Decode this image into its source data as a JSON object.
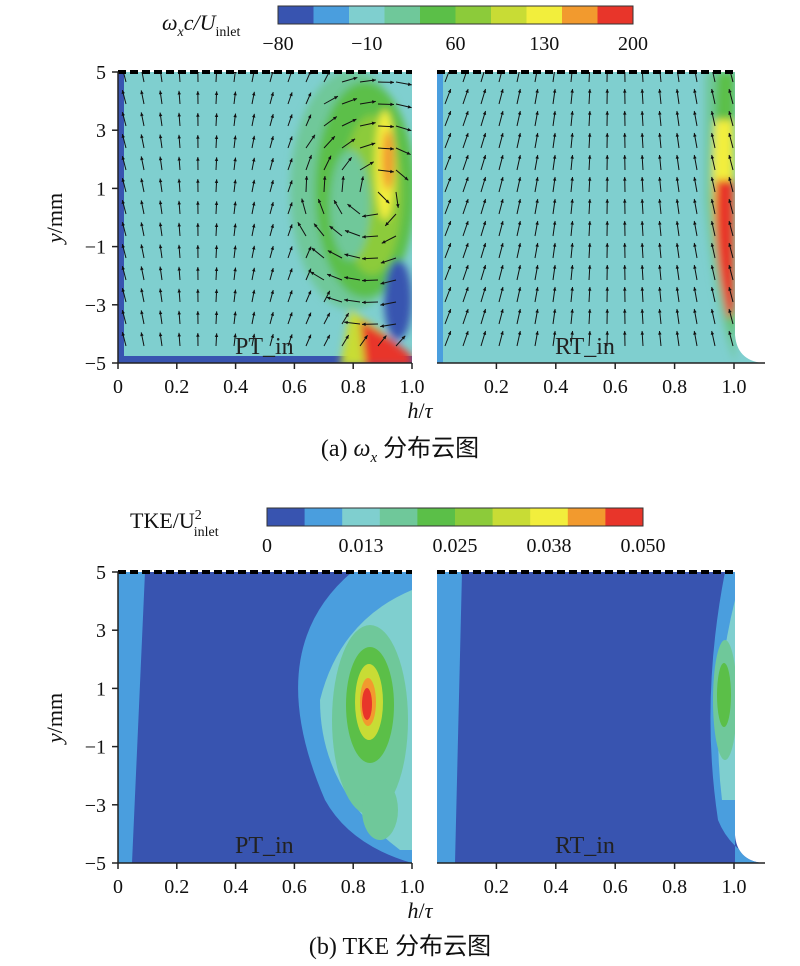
{
  "colors": {
    "levels": [
      "#3854b0",
      "#4a9ede",
      "#7fcfcf",
      "#6fc89a",
      "#5bbf48",
      "#8ccb3a",
      "#c8dc35",
      "#f2ee3c",
      "#f29a2e",
      "#e8352a"
    ],
    "wall": "#1f3fa8",
    "arrow": "#111111"
  },
  "chart_data": [
    {
      "type": "heatmap",
      "panel": "a",
      "caption_prefix": "(a) ",
      "caption_symbol": "ω",
      "caption_sub": "x",
      "caption_suffix": " 分布云图",
      "colorbar_label_main": "ω",
      "colorbar_label_sub1": "x",
      "colorbar_label_mid": "c/U",
      "colorbar_label_sub2": "inlet",
      "colorbar_ticks": [
        "−80",
        "−10",
        "60",
        "130",
        "200"
      ],
      "colorbar_range": [
        -80,
        200
      ],
      "ylabel_italic": "y",
      "ylabel_rest": "/mm",
      "yticks": [
        "5",
        "3",
        "1",
        "−1",
        "−3",
        "−5"
      ],
      "ylim": [
        -5,
        5
      ],
      "xlabel_italic_1": "h",
      "xlabel_sep": "/",
      "xlabel_italic_2": "τ",
      "subplots": [
        {
          "name": "PT_in",
          "xticks": [
            "0",
            "0.2",
            "0.4",
            "0.6",
            "0.8",
            "1.0"
          ],
          "xlim": [
            0,
            1.0
          ],
          "features": [
            {
              "kind": "vortex_ring",
              "center": [
                0.85,
                0.5
              ],
              "value_peak": 160,
              "value_ring": 70
            },
            {
              "kind": "corner_peak",
              "center": [
                0.95,
                -4.5
              ],
              "value_peak": 200
            },
            {
              "kind": "negative_region",
              "center": [
                0.97,
                -2.5
              ],
              "value_peak": -80
            }
          ]
        },
        {
          "name": "RT_in",
          "xticks": [
            "0.2",
            "0.4",
            "0.6",
            "0.8",
            "1.0"
          ],
          "xlim": [
            0,
            1.1
          ],
          "features": [
            {
              "kind": "wall_strip",
              "center": [
                0.95,
                0.0
              ],
              "value_peak": 200,
              "value_ring": 70
            }
          ]
        }
      ]
    },
    {
      "type": "heatmap",
      "panel": "b",
      "caption_prefix": "(b) ",
      "caption_text": "TKE 分布云图",
      "colorbar_label_main": "TKE/U",
      "colorbar_label_sup": "2",
      "colorbar_label_sub": "inlet",
      "colorbar_ticks": [
        "0",
        "0.013",
        "0.025",
        "0.038",
        "0.050"
      ],
      "colorbar_range": [
        0,
        0.05
      ],
      "ylabel_italic": "y",
      "ylabel_rest": "/mm",
      "yticks": [
        "5",
        "3",
        "1",
        "−1",
        "−3",
        "−5"
      ],
      "ylim": [
        -5,
        5
      ],
      "xlabel_italic_1": "h",
      "xlabel_sep": "/",
      "xlabel_italic_2": "τ",
      "subplots": [
        {
          "name": "PT_in",
          "xticks": [
            "0",
            "0.2",
            "0.4",
            "0.6",
            "0.8",
            "1.0"
          ],
          "xlim": [
            0,
            1.0
          ],
          "features": [
            {
              "kind": "tke_peak",
              "center": [
                0.85,
                0.5
              ],
              "value_peak": 0.05
            },
            {
              "kind": "tke_band",
              "center": [
                0.8,
                -1.0
              ],
              "value_peak": 0.02
            }
          ]
        },
        {
          "name": "RT_in",
          "xticks": [
            "0.2",
            "0.4",
            "0.6",
            "0.8",
            "1.0"
          ],
          "xlim": [
            0,
            1.1
          ],
          "features": [
            {
              "kind": "tke_wall",
              "center": [
                0.95,
                0.5
              ],
              "value_peak": 0.03
            }
          ]
        }
      ]
    }
  ]
}
